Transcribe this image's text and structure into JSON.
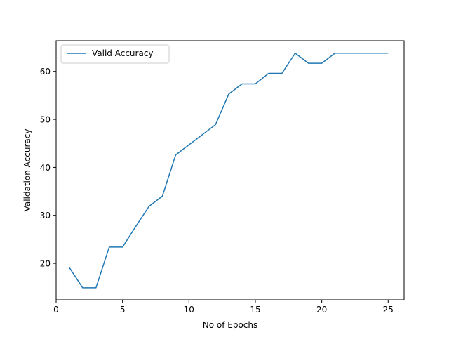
{
  "chart_data": {
    "type": "line",
    "title": "",
    "xlabel": "No of Epochs",
    "ylabel": "Validation Accuracy",
    "xlim": [
      0,
      26.2
    ],
    "ylim": [
      12.4,
      66.4
    ],
    "xticks": [
      0,
      5,
      10,
      15,
      20,
      25
    ],
    "yticks": [
      20,
      30,
      40,
      50,
      60
    ],
    "grid": false,
    "legend_position": "top-left",
    "series": [
      {
        "name": "Valid Accuracy",
        "color": "#1f77b4",
        "x": [
          1,
          2,
          3,
          4,
          5,
          6,
          7,
          8,
          9,
          10,
          11,
          12,
          13,
          14,
          15,
          16,
          17,
          18,
          19,
          20,
          21,
          22,
          23,
          24,
          25
        ],
        "y": [
          19.1,
          14.9,
          14.9,
          23.4,
          23.4,
          27.7,
          31.9,
          34.0,
          42.6,
          44.7,
          46.8,
          48.9,
          55.3,
          57.4,
          57.4,
          59.6,
          59.6,
          63.8,
          61.7,
          61.7,
          63.8,
          63.8,
          63.8,
          63.8,
          63.8
        ]
      }
    ]
  }
}
